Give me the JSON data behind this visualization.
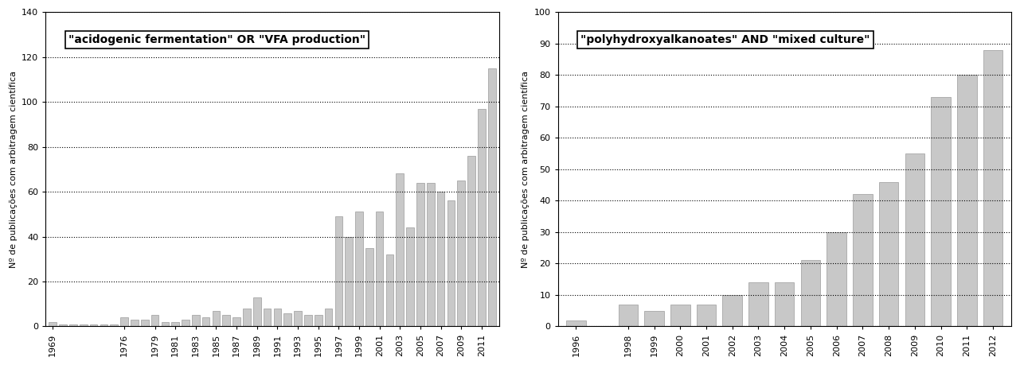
{
  "left_title": "\"acidogenic fermentation\" OR \"VFA production\"",
  "left_ylabel": "Nº de publicações com arbitragem científica",
  "left_years": [
    1969,
    1970,
    1971,
    1972,
    1973,
    1974,
    1975,
    1976,
    1977,
    1978,
    1979,
    1980,
    1981,
    1982,
    1983,
    1984,
    1985,
    1986,
    1987,
    1988,
    1989,
    1990,
    1991,
    1992,
    1993,
    1994,
    1995,
    1996,
    1997,
    1998,
    1999,
    2000,
    2001,
    2002,
    2003,
    2004,
    2005,
    2006,
    2007,
    2008,
    2009,
    2010,
    2011,
    2012
  ],
  "left_values": [
    2,
    1,
    1,
    1,
    1,
    1,
    1,
    4,
    3,
    3,
    5,
    2,
    2,
    3,
    5,
    4,
    7,
    5,
    4,
    8,
    13,
    8,
    8,
    6,
    7,
    5,
    5,
    8,
    49,
    40,
    51,
    35,
    51,
    32,
    68,
    44,
    64,
    64,
    60,
    56,
    65,
    76,
    97,
    115
  ],
  "left_tick_years": [
    1969,
    1976,
    1979,
    1981,
    1983,
    1985,
    1987,
    1989,
    1991,
    1993,
    1995,
    1997,
    1999,
    2001,
    2003,
    2005,
    2007,
    2009,
    2011
  ],
  "left_ylim": [
    0,
    140
  ],
  "left_yticks": [
    0,
    20,
    40,
    60,
    80,
    100,
    120,
    140
  ],
  "right_title": "\"polyhydroxyalkanoates\" AND \"mixed culture\"",
  "right_ylabel": "Nº de publicações com arbitragem científica",
  "right_years": [
    1996,
    1997,
    1998,
    1999,
    2000,
    2001,
    2002,
    2003,
    2004,
    2005,
    2006,
    2007,
    2008,
    2009,
    2010,
    2011,
    2012
  ],
  "right_values": [
    2,
    0,
    7,
    5,
    7,
    7,
    10,
    14,
    14,
    21,
    30,
    42,
    46,
    55,
    73,
    80,
    88
  ],
  "right_tick_years": [
    1996,
    1998,
    1999,
    2000,
    2001,
    2002,
    2003,
    2004,
    2005,
    2006,
    2007,
    2008,
    2009,
    2010,
    2011,
    2012
  ],
  "right_ylim": [
    0,
    100
  ],
  "right_yticks": [
    0,
    10,
    20,
    30,
    40,
    50,
    60,
    70,
    80,
    90,
    100
  ],
  "bar_color": "#c8c8c8",
  "bar_edgecolor": "#888888",
  "background_color": "#ffffff",
  "title_fontsize": 10,
  "tick_fontsize": 8,
  "ylabel_fontsize": 8,
  "grid_color": "#000000",
  "grid_linewidth": 0.8
}
